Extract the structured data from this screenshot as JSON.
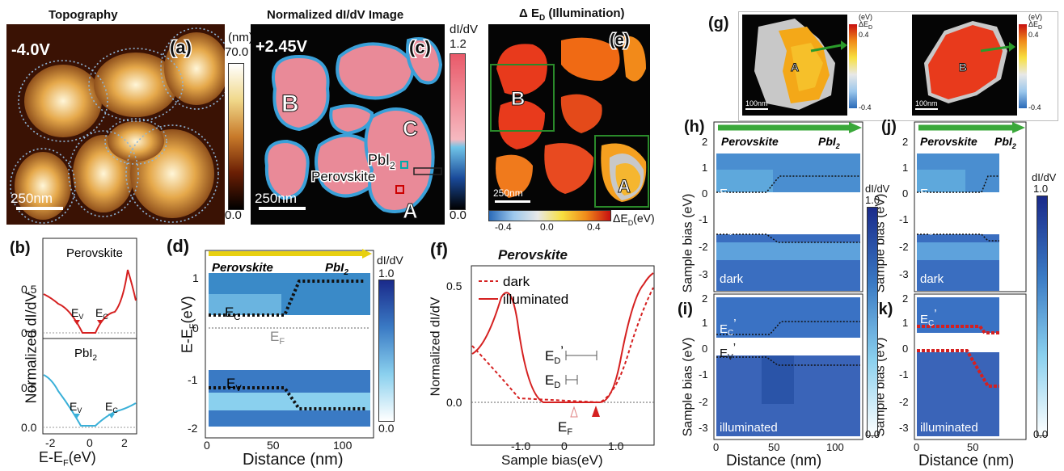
{
  "a": {
    "title": "Topography",
    "bias": "-4.0V",
    "label": "(a)",
    "unit": "(nm)",
    "cmax": "70.0",
    "cmin": "0.0",
    "scale": "250nm"
  },
  "c": {
    "title": "Normalized dI/dV Image",
    "bias": "+2.45V",
    "label": "(c)",
    "unit": "dI/dV",
    "cmax": "1.2",
    "cmin": "0.0",
    "scale": "250nm",
    "regionB": "B",
    "regionC": "C",
    "regionA": "A",
    "pbi": "PbI",
    "pbi_sub": "2",
    "perov": "Perovskite"
  },
  "e": {
    "title": "Δ E",
    "title_sub": "D",
    "title_rest": " (Illumination)",
    "label": "(e)",
    "scale": "250nm",
    "regionB": "B",
    "regionA": "A",
    "ticks": [
      "-0.4",
      "0.0",
      "0.4"
    ],
    "unit": "ΔE",
    "unit_sub": "D",
    "unit_rest": "(eV)"
  },
  "g": {
    "label": "(g)",
    "regionA": "A",
    "regionB": "B",
    "scale": "100nm",
    "unit": "(eV)",
    "unit2": "ΔE",
    "unit2_sub": "D",
    "cmax": "0.4",
    "cmin": "-0.4"
  },
  "b": {
    "label": "(b)",
    "top_name": "Perovskite",
    "bot_name": "PbI",
    "bot_sub": "2",
    "ev": "E",
    "ev_sub": "V",
    "ec": "E",
    "ec_sub": "C",
    "ylabel": "Normalized dI/dV",
    "xlabel": "E-E",
    "xlabel_sub": "F",
    "xlabel_rest": "(eV)",
    "yticks_top": [
      "0.5",
      "0.0"
    ],
    "yticks_bot": [
      "0.5",
      "0.0"
    ],
    "xticks": [
      "-2",
      "0",
      "2"
    ]
  },
  "d": {
    "label": "(d)",
    "left": "Perovskite",
    "right": "PbI",
    "right_sub": "2",
    "unit": "dI/dV",
    "cmax": "1.0",
    "cmin": "0.0",
    "ec": "E",
    "ec_sub": "C",
    "ef": "E",
    "ef_sub": "F",
    "ev": "E",
    "ev_sub": "V",
    "ylabel": "E-E",
    "ylabel_sub": "F",
    "ylabel_rest": "(eV)",
    "xlabel": "Distance (nm)",
    "yticks": [
      "1",
      "0",
      "-1",
      "-2"
    ],
    "xticks": [
      "0",
      "50",
      "100"
    ]
  },
  "f": {
    "label": "(f)",
    "title": "Perovskite",
    "legend_dark": "dark",
    "legend_illum": "illuminated",
    "ed2": "E",
    "ed2_sub": "D",
    "ed2_sup": "’",
    "ed": "E",
    "ed_sub": "D",
    "ef": "E",
    "ef_sub": "F",
    "ylabel": "Normalized dI/dV",
    "xlabel": "Sample bias(eV)",
    "yticks": [
      "0.5",
      "0.0"
    ],
    "xticks": [
      "-1.0",
      "0",
      "1.0"
    ]
  },
  "hk": {
    "labels": [
      "(h)",
      "(i)",
      "(j)",
      "(k)"
    ],
    "left": "Perovskite",
    "right": "PbI",
    "right_sub": "2",
    "dark": "dark",
    "illum": "illuminated",
    "ec": "E",
    "ec_sub": "C",
    "ev": "E",
    "ev_sub": "V",
    "ec2": "E",
    "ec2_sub": "C",
    "ec2_sup": "’",
    "ev2": "E",
    "ev2_sub": "V",
    "ev2_sup": "’",
    "ylabel": "Sample bias (eV)",
    "xlabel": "Distance (nm)",
    "unit": "dI/dV",
    "cmax": "1.0",
    "cmin": "0.0",
    "yticks_top": [
      "2",
      "1",
      "0",
      "-1",
      "-2",
      "-3"
    ],
    "yticks_bot": [
      "2",
      "1",
      "0",
      "-1",
      "-2",
      "-3"
    ],
    "xticks_l": [
      "0",
      "50",
      "100"
    ],
    "xticks_r": [
      "0",
      "50"
    ]
  }
}
